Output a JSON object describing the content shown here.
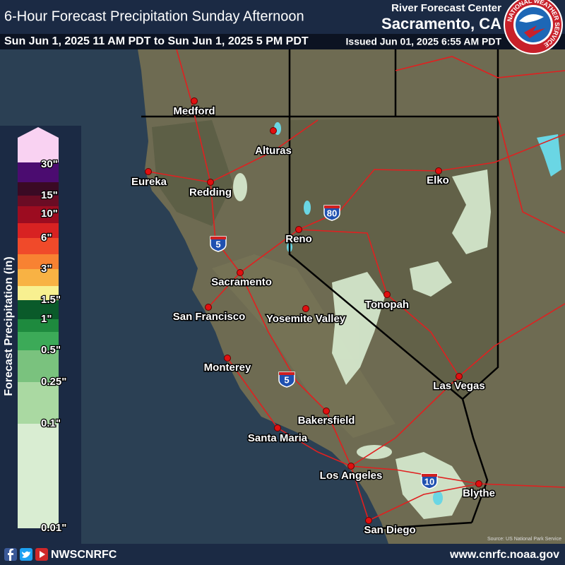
{
  "header": {
    "title": "6-Hour Forecast Precipitation Sunday Afternoon",
    "period": "Sun Jun 1, 2025 11 AM PDT to Sun Jun 1, 2025 5 PM PDT",
    "center": "River Forecast Center",
    "office": "Sacramento, CA",
    "issued": "Issued Jun 01, 2025 6:55 AM PDT",
    "logo_text": "NATIONAL WEATHER SERVICE"
  },
  "legend": {
    "title": "Forecast Precipitation (in)",
    "labels": [
      "30\"",
      "15\"",
      "10\"",
      "6\"",
      "3\"",
      "1.5\"",
      "1\"",
      "0.5\"",
      "0.25\"",
      "0.1\"",
      "0.01\""
    ],
    "colors": [
      "#f9d2f2",
      "#4b0c70",
      "#3a0a24",
      "#6a0c24",
      "#9c0c20",
      "#d82222",
      "#f04a2a",
      "#f88232",
      "#f8b244",
      "#f8f090",
      "#0a5a2a",
      "#1e8a3e",
      "#3caa58",
      "#7ac27e",
      "#aad9a2",
      "#d9edd2"
    ]
  },
  "map": {
    "cities": [
      "Medford",
      "Alturas",
      "Eureka",
      "Redding",
      "Elko",
      "Reno",
      "Sacramento",
      "San Francisco",
      "Yosemite Valley",
      "Tonopah",
      "Monterey",
      "Las Vegas",
      "Bakersfield",
      "Santa Maria",
      "Los Angeles",
      "Blythe",
      "San Diego"
    ],
    "highways": [
      "5",
      "80",
      "5",
      "10"
    ],
    "source": "Source: US National Park Service"
  },
  "footer": {
    "handle": "NWSCNRFC",
    "url": "www.cnrfc.noaa.gov"
  }
}
